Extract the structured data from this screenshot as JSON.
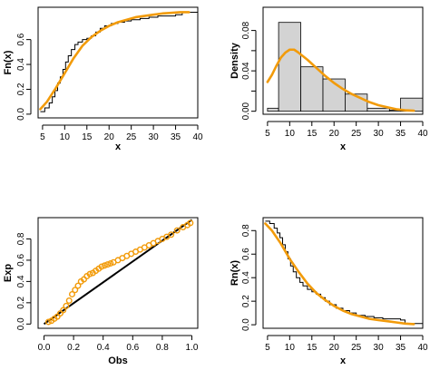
{
  "chart_data": [
    {
      "type": "line",
      "xlabel": "x",
      "ylabel": "Fn(x)",
      "xlim": [
        4,
        40
      ],
      "ylim": [
        -0.03,
        0.86
      ],
      "xticks": [
        5,
        10,
        15,
        20,
        25,
        30,
        35,
        40
      ],
      "yticks": [
        0.0,
        0.2,
        0.4,
        0.6
      ],
      "ytick_labels": [
        "0.0",
        "0.2",
        "0.4",
        "0.6"
      ],
      "colors": {
        "empirical": "#000000",
        "fitted": "#f29b0a"
      },
      "series": [
        {
          "kind": "step",
          "x": [
            4.5,
            5.5,
            6.5,
            7.2,
            7.8,
            8.4,
            9.0,
            9.6,
            10.2,
            10.8,
            11.5,
            12.3,
            13.0,
            14.0,
            15.0,
            16.0,
            17.0,
            18.0,
            19.0,
            20.5,
            22.0,
            23.5,
            25.0,
            27.0,
            29.0,
            31.0,
            33.0,
            35.0,
            36.5,
            40.0
          ],
          "y": [
            0.02,
            0.05,
            0.09,
            0.14,
            0.19,
            0.25,
            0.3,
            0.36,
            0.42,
            0.47,
            0.52,
            0.56,
            0.58,
            0.6,
            0.61,
            0.63,
            0.66,
            0.69,
            0.71,
            0.73,
            0.74,
            0.75,
            0.76,
            0.77,
            0.78,
            0.79,
            0.79,
            0.8,
            0.82,
            0.82
          ]
        },
        {
          "kind": "curve",
          "x": [
            4.5,
            6,
            8,
            10,
            12,
            14,
            16,
            18,
            20,
            22,
            24,
            26,
            28,
            30,
            32,
            34,
            36,
            38
          ],
          "y": [
            0.04,
            0.1,
            0.21,
            0.33,
            0.45,
            0.55,
            0.62,
            0.67,
            0.71,
            0.74,
            0.76,
            0.78,
            0.79,
            0.8,
            0.81,
            0.815,
            0.82,
            0.82
          ]
        }
      ]
    },
    {
      "type": "bar",
      "xlabel": "x",
      "ylabel": "Density",
      "xlim": [
        4,
        40
      ],
      "ylim": [
        -0.003,
        0.103
      ],
      "xticks": [
        5,
        10,
        15,
        20,
        25,
        30,
        35,
        40
      ],
      "yticks": [
        0.0,
        0.02,
        0.04,
        0.06,
        0.08
      ],
      "ytick_labels": [
        "0.00",
        "",
        "0.04",
        "",
        "0.08"
      ],
      "colors": {
        "bars": "#d3d3d3",
        "fitted": "#f29b0a"
      },
      "bins": [
        [
          5,
          7.5
        ],
        [
          7.5,
          12.5
        ],
        [
          12.5,
          17.5
        ],
        [
          17.5,
          22.5
        ],
        [
          22.5,
          27.5
        ],
        [
          27.5,
          32.5
        ],
        [
          32.5,
          35
        ],
        [
          35,
          40
        ]
      ],
      "values": [
        0.003,
        0.088,
        0.044,
        0.032,
        0.017,
        0.003,
        0.001,
        0.013
      ],
      "series": [
        {
          "kind": "curve",
          "x": [
            5,
            6,
            7,
            8,
            9,
            10,
            11,
            12,
            14,
            16,
            18,
            20,
            22,
            24,
            26,
            28,
            30,
            32,
            34,
            36,
            38
          ],
          "y": [
            0.029,
            0.036,
            0.045,
            0.053,
            0.058,
            0.061,
            0.061,
            0.058,
            0.051,
            0.043,
            0.035,
            0.028,
            0.022,
            0.017,
            0.013,
            0.009,
            0.006,
            0.004,
            0.002,
            0.001,
            0.0005
          ]
        }
      ]
    },
    {
      "type": "scatter",
      "xlabel": "Obs",
      "ylabel": "Exp",
      "xlim": [
        -0.04,
        1.04
      ],
      "ylim": [
        -0.04,
        1.0
      ],
      "xticks": [
        0.0,
        0.2,
        0.4,
        0.6,
        0.8,
        1.0
      ],
      "yticks": [
        0.0,
        0.2,
        0.4,
        0.6,
        0.8
      ],
      "xtick_labels": [
        "0.0",
        "0.2",
        "0.4",
        "0.6",
        "0.8",
        "1.0"
      ],
      "ytick_labels": [
        "0.0",
        "0.2",
        "0.4",
        "0.6",
        "0.8"
      ],
      "colors": {
        "points": "#f29b0a",
        "reference": "#000000"
      },
      "points_x": [
        0.03,
        0.05,
        0.07,
        0.09,
        0.11,
        0.13,
        0.15,
        0.17,
        0.19,
        0.21,
        0.23,
        0.25,
        0.27,
        0.29,
        0.31,
        0.33,
        0.35,
        0.37,
        0.39,
        0.41,
        0.43,
        0.45,
        0.47,
        0.5,
        0.53,
        0.56,
        0.59,
        0.62,
        0.65,
        0.68,
        0.71,
        0.74,
        0.77,
        0.8,
        0.83,
        0.86,
        0.9,
        0.94,
        0.97,
        0.99
      ],
      "points_y": [
        0.02,
        0.03,
        0.05,
        0.07,
        0.1,
        0.13,
        0.17,
        0.22,
        0.28,
        0.32,
        0.36,
        0.4,
        0.42,
        0.45,
        0.47,
        0.48,
        0.5,
        0.52,
        0.54,
        0.55,
        0.56,
        0.57,
        0.58,
        0.6,
        0.62,
        0.64,
        0.66,
        0.68,
        0.7,
        0.72,
        0.74,
        0.76,
        0.78,
        0.8,
        0.82,
        0.84,
        0.88,
        0.91,
        0.93,
        0.95
      ],
      "reference_line": {
        "x": [
          0.0,
          1.0
        ],
        "y": [
          0.0,
          0.98
        ]
      }
    },
    {
      "type": "line",
      "xlabel": "x",
      "ylabel": "Rn(x)",
      "xlim": [
        4,
        40
      ],
      "ylim": [
        -0.03,
        0.91
      ],
      "xticks": [
        5,
        10,
        15,
        20,
        25,
        30,
        35,
        40
      ],
      "yticks": [
        0.0,
        0.2,
        0.4,
        0.6,
        0.8
      ],
      "ytick_labels": [
        "0.0",
        "0.2",
        "0.4",
        "0.6",
        "0.8"
      ],
      "colors": {
        "empirical": "#000000",
        "fitted": "#f29b0a"
      },
      "series": [
        {
          "kind": "step",
          "x": [
            4.5,
            5.5,
            6.5,
            7.2,
            7.8,
            8.4,
            9.0,
            9.6,
            10.2,
            10.8,
            11.5,
            12.3,
            13.0,
            14.0,
            15.0,
            16.0,
            17.0,
            18.0,
            19.0,
            20.5,
            22.0,
            23.5,
            25.0,
            27.0,
            29.0,
            31.0,
            33.0,
            35.0,
            36.0,
            40.0
          ],
          "y": [
            0.88,
            0.86,
            0.82,
            0.78,
            0.74,
            0.68,
            0.62,
            0.56,
            0.5,
            0.45,
            0.4,
            0.36,
            0.33,
            0.3,
            0.28,
            0.26,
            0.23,
            0.2,
            0.17,
            0.14,
            0.12,
            0.1,
            0.08,
            0.07,
            0.06,
            0.05,
            0.05,
            0.04,
            0.01,
            0.01
          ]
        },
        {
          "kind": "curve",
          "x": [
            4.5,
            6,
            8,
            10,
            12,
            14,
            16,
            18,
            20,
            22,
            24,
            26,
            28,
            30,
            32,
            34,
            36,
            38
          ],
          "y": [
            0.86,
            0.8,
            0.69,
            0.56,
            0.45,
            0.35,
            0.27,
            0.21,
            0.16,
            0.12,
            0.09,
            0.07,
            0.05,
            0.04,
            0.03,
            0.02,
            0.01,
            0.005
          ]
        }
      ]
    }
  ]
}
